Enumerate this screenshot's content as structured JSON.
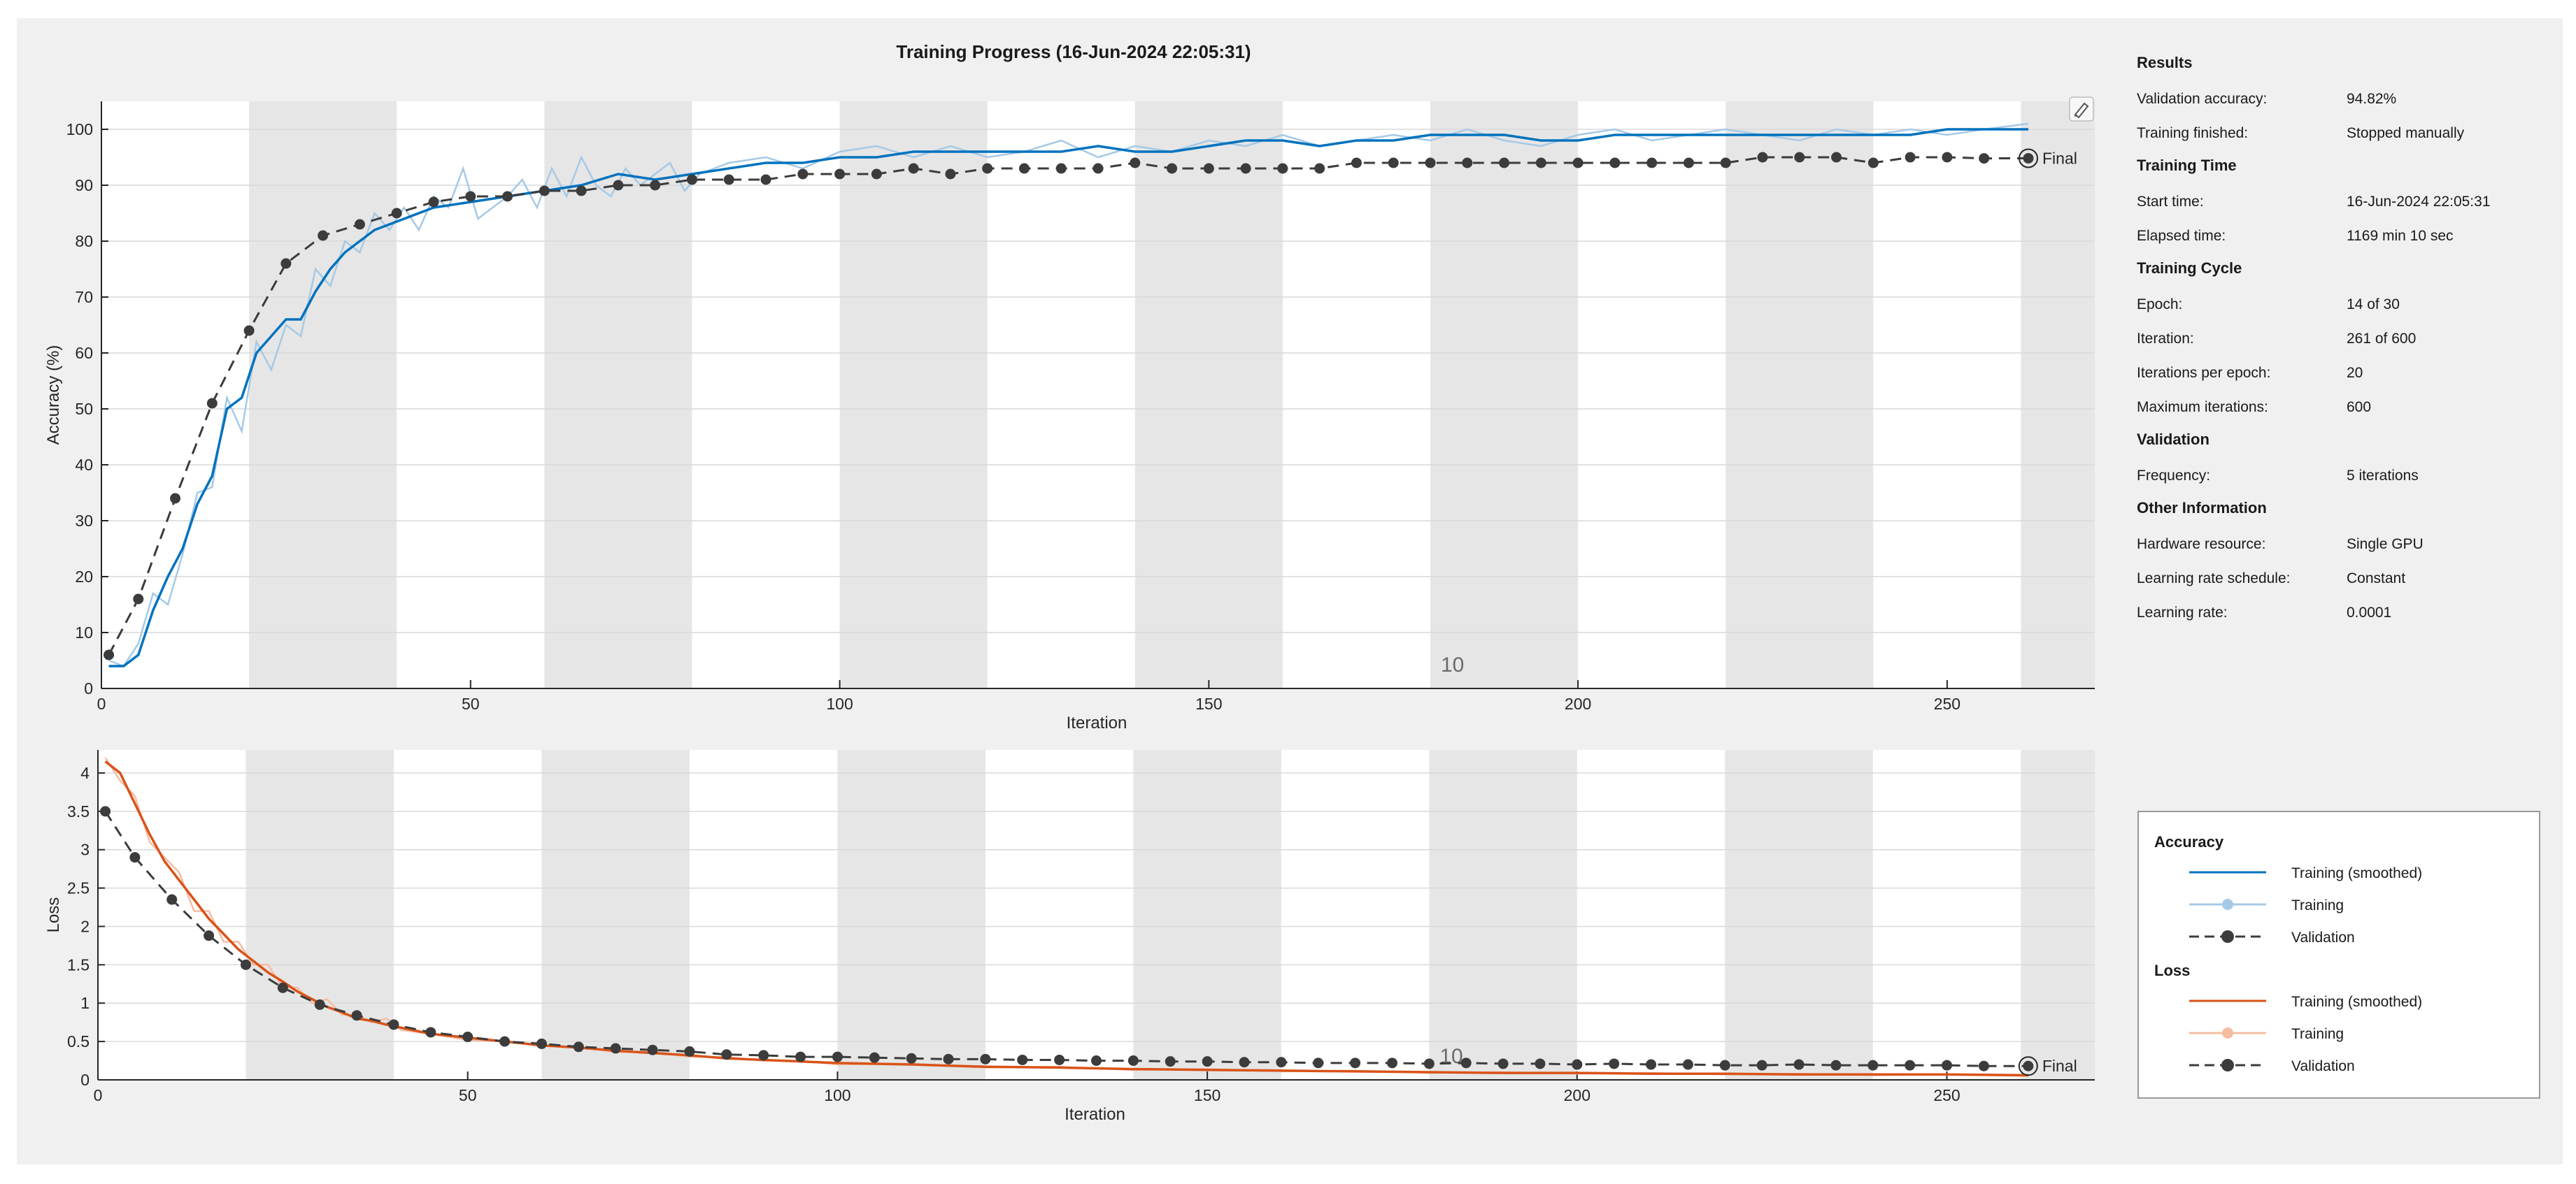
{
  "chart_data": [
    {
      "type": "line",
      "id": "accuracy",
      "title": "Training Progress (16-Jun-2024 22:05:31)",
      "xlabel": "Iteration",
      "ylabel": "Accuracy (%)",
      "xlim": [
        0,
        270
      ],
      "ylim": [
        0,
        105
      ],
      "xticks": [
        0,
        50,
        100,
        150,
        200,
        250
      ],
      "yticks": [
        0,
        10,
        20,
        30,
        40,
        50,
        60,
        70,
        80,
        90,
        100
      ],
      "grid": true,
      "epoch_bands": [
        [
          20,
          40
        ],
        [
          60,
          80
        ],
        [
          100,
          120
        ],
        [
          140,
          160
        ],
        [
          180,
          200
        ],
        [
          220,
          240
        ],
        [
          260,
          270
        ]
      ],
      "epoch_label": {
        "text": "10",
        "x": 183
      },
      "final_label": "Final",
      "series": [
        {
          "name": "Training (smoothed)",
          "color": "#0072bd",
          "x": [
            1,
            3,
            5,
            7,
            9,
            11,
            13,
            15,
            17,
            19,
            21,
            23,
            25,
            27,
            29,
            31,
            33,
            35,
            37,
            39,
            41,
            45,
            50,
            55,
            60,
            65,
            70,
            75,
            80,
            85,
            90,
            95,
            100,
            105,
            110,
            115,
            120,
            125,
            130,
            135,
            140,
            145,
            150,
            155,
            160,
            165,
            170,
            175,
            180,
            185,
            190,
            195,
            200,
            205,
            210,
            215,
            220,
            225,
            230,
            235,
            240,
            245,
            250,
            255,
            261
          ],
          "values": [
            4,
            4,
            6,
            14,
            20,
            25,
            33,
            38,
            50,
            52,
            60,
            63,
            66,
            66,
            71,
            75,
            78,
            80,
            82,
            83,
            84,
            86,
            87,
            88,
            89,
            90,
            92,
            91,
            92,
            93,
            94,
            94,
            95,
            95,
            96,
            96,
            96,
            96,
            96,
            97,
            96,
            96,
            97,
            98,
            98,
            97,
            98,
            98,
            99,
            99,
            99,
            98,
            98,
            99,
            99,
            99,
            99,
            99,
            99,
            99,
            99,
            99,
            100,
            100,
            100
          ]
        },
        {
          "name": "Training",
          "color": "#a6c9e6",
          "x": [
            1,
            3,
            5,
            7,
            9,
            11,
            13,
            15,
            17,
            19,
            21,
            23,
            25,
            27,
            29,
            31,
            33,
            35,
            37,
            39,
            41,
            43,
            45,
            47,
            49,
            51,
            53,
            55,
            57,
            59,
            61,
            63,
            65,
            67,
            69,
            71,
            73,
            75,
            77,
            79,
            81,
            85,
            90,
            95,
            100,
            105,
            110,
            115,
            120,
            125,
            130,
            135,
            140,
            145,
            150,
            155,
            160,
            165,
            170,
            175,
            180,
            185,
            190,
            195,
            200,
            205,
            210,
            215,
            220,
            225,
            230,
            235,
            240,
            245,
            250,
            255,
            261
          ],
          "values": [
            5,
            4,
            8,
            17,
            15,
            24,
            35,
            36,
            52,
            46,
            62,
            57,
            65,
            63,
            75,
            72,
            80,
            78,
            85,
            82,
            86,
            82,
            88,
            86,
            93,
            84,
            86,
            88,
            91,
            86,
            93,
            88,
            95,
            90,
            88,
            93,
            90,
            92,
            94,
            89,
            92,
            94,
            95,
            93,
            96,
            97,
            95,
            97,
            95,
            96,
            98,
            95,
            97,
            96,
            98,
            97,
            99,
            97,
            98,
            99,
            98,
            100,
            98,
            97,
            99,
            100,
            98,
            99,
            100,
            99,
            98,
            100,
            99,
            100,
            99,
            100,
            101
          ]
        },
        {
          "name": "Validation",
          "color": "#3c3c3c",
          "x": [
            1,
            5,
            10,
            15,
            20,
            25,
            30,
            35,
            40,
            45,
            50,
            55,
            60,
            65,
            70,
            75,
            80,
            85,
            90,
            95,
            100,
            105,
            110,
            115,
            120,
            125,
            130,
            135,
            140,
            145,
            150,
            155,
            160,
            165,
            170,
            175,
            180,
            185,
            190,
            195,
            200,
            205,
            210,
            215,
            220,
            225,
            230,
            235,
            240,
            245,
            250,
            255,
            261
          ],
          "values": [
            6,
            16,
            34,
            51,
            64,
            76,
            81,
            83,
            85,
            87,
            88,
            88,
            89,
            89,
            90,
            90,
            91,
            91,
            91,
            92,
            92,
            92,
            93,
            92,
            93,
            93,
            93,
            93,
            94,
            93,
            93,
            93,
            93,
            93,
            94,
            94,
            94,
            94,
            94,
            94,
            94,
            94,
            94,
            94,
            94,
            95,
            95,
            95,
            94,
            95,
            95,
            94.8,
            94.82
          ]
        }
      ]
    },
    {
      "type": "line",
      "id": "loss",
      "xlabel": "Iteration",
      "ylabel": "Loss",
      "xlim": [
        0,
        270
      ],
      "ylim": [
        0,
        4.3
      ],
      "xticks": [
        0,
        50,
        100,
        150,
        200,
        250
      ],
      "yticks": [
        0,
        0.5,
        1,
        1.5,
        2,
        2.5,
        3,
        3.5,
        4
      ],
      "ytick_labels": [
        "0",
        "0.5",
        "1",
        "1.5",
        "2",
        "2.5",
        "3",
        "3.5",
        "4"
      ],
      "grid": true,
      "epoch_bands": [
        [
          20,
          40
        ],
        [
          60,
          80
        ],
        [
          100,
          120
        ],
        [
          140,
          160
        ],
        [
          180,
          200
        ],
        [
          220,
          240
        ],
        [
          260,
          270
        ]
      ],
      "epoch_label": {
        "text": "10",
        "x": 183
      },
      "final_label": "Final",
      "series": [
        {
          "name": "Training (smoothed)",
          "color": "#d95319",
          "x": [
            1,
            3,
            5,
            7,
            9,
            11,
            13,
            15,
            17,
            19,
            21,
            23,
            25,
            27,
            29,
            31,
            33,
            35,
            37,
            39,
            41,
            45,
            50,
            55,
            60,
            65,
            70,
            75,
            80,
            85,
            90,
            95,
            100,
            110,
            120,
            130,
            140,
            150,
            160,
            170,
            180,
            190,
            200,
            210,
            220,
            230,
            240,
            250,
            261
          ],
          "values": [
            4.15,
            4.0,
            3.6,
            3.2,
            2.85,
            2.6,
            2.35,
            2.1,
            1.9,
            1.7,
            1.55,
            1.4,
            1.28,
            1.15,
            1.05,
            0.95,
            0.88,
            0.8,
            0.77,
            0.72,
            0.68,
            0.6,
            0.55,
            0.5,
            0.45,
            0.42,
            0.38,
            0.35,
            0.32,
            0.28,
            0.26,
            0.24,
            0.22,
            0.2,
            0.17,
            0.16,
            0.14,
            0.13,
            0.12,
            0.11,
            0.1,
            0.09,
            0.09,
            0.08,
            0.08,
            0.07,
            0.07,
            0.07,
            0.06
          ]
        },
        {
          "name": "Training",
          "color": "#f4bda2",
          "x": [
            1,
            3,
            5,
            7,
            9,
            11,
            13,
            15,
            17,
            19,
            21,
            23,
            25,
            27,
            29,
            31,
            33,
            35,
            37,
            39,
            41,
            45,
            50,
            55,
            60,
            65,
            70,
            75,
            80,
            85,
            90,
            95,
            100,
            110,
            120,
            130,
            140,
            150,
            160,
            170,
            180,
            190,
            200,
            210,
            220,
            230,
            240,
            250,
            261
          ],
          "values": [
            4.2,
            3.9,
            3.7,
            3.1,
            2.9,
            2.7,
            2.2,
            2.2,
            1.8,
            1.8,
            1.5,
            1.5,
            1.2,
            1.2,
            1.0,
            1.05,
            0.85,
            0.85,
            0.75,
            0.8,
            0.65,
            0.6,
            0.52,
            0.5,
            0.44,
            0.43,
            0.36,
            0.37,
            0.3,
            0.3,
            0.25,
            0.25,
            0.2,
            0.21,
            0.16,
            0.17,
            0.13,
            0.14,
            0.11,
            0.12,
            0.09,
            0.1,
            0.08,
            0.09,
            0.07,
            0.08,
            0.06,
            0.07,
            0.05
          ]
        },
        {
          "name": "Validation",
          "color": "#3c3c3c",
          "x": [
            1,
            5,
            10,
            15,
            20,
            25,
            30,
            35,
            40,
            45,
            50,
            55,
            60,
            65,
            70,
            75,
            80,
            85,
            90,
            95,
            100,
            105,
            110,
            115,
            120,
            125,
            130,
            135,
            140,
            145,
            150,
            155,
            160,
            165,
            170,
            175,
            180,
            185,
            190,
            195,
            200,
            205,
            210,
            215,
            220,
            225,
            230,
            235,
            240,
            245,
            250,
            255,
            261
          ],
          "values": [
            3.5,
            2.9,
            2.35,
            1.88,
            1.5,
            1.2,
            0.98,
            0.84,
            0.72,
            0.62,
            0.56,
            0.5,
            0.47,
            0.43,
            0.41,
            0.39,
            0.37,
            0.33,
            0.32,
            0.3,
            0.3,
            0.29,
            0.28,
            0.27,
            0.27,
            0.26,
            0.26,
            0.25,
            0.25,
            0.24,
            0.24,
            0.23,
            0.23,
            0.22,
            0.22,
            0.22,
            0.21,
            0.22,
            0.21,
            0.21,
            0.2,
            0.21,
            0.2,
            0.2,
            0.19,
            0.19,
            0.2,
            0.19,
            0.19,
            0.19,
            0.19,
            0.18,
            0.18
          ]
        }
      ]
    }
  ],
  "info": {
    "results_title": "Results",
    "validation_accuracy_label": "Validation accuracy:",
    "validation_accuracy_value": "94.82%",
    "training_finished_label": "Training finished:",
    "training_finished_value": "Stopped manually",
    "time_title": "Training Time",
    "start_time_label": "Start time:",
    "start_time_value": "16-Jun-2024 22:05:31",
    "elapsed_label": "Elapsed time:",
    "elapsed_value": "1169 min 10 sec",
    "cycle_title": "Training Cycle",
    "epoch_label": "Epoch:",
    "epoch_value": "14 of 30",
    "iteration_label": "Iteration:",
    "iteration_value": "261 of 600",
    "iter_per_epoch_label": "Iterations per epoch:",
    "iter_per_epoch_value": "20",
    "max_iter_label": "Maximum iterations:",
    "max_iter_value": "600",
    "validation_title": "Validation",
    "frequency_label": "Frequency:",
    "frequency_value": "5 iterations",
    "other_title": "Other Information",
    "hardware_label": "Hardware resource:",
    "hardware_value": "Single GPU",
    "lr_schedule_label": "Learning rate schedule:",
    "lr_schedule_value": "Constant",
    "lr_label": "Learning rate:",
    "lr_value": "0.0001"
  },
  "legend": {
    "accuracy_title": "Accuracy",
    "loss_title": "Loss",
    "acc_smoothed": "Training (smoothed)",
    "acc_training": "Training",
    "acc_validation": "Validation",
    "loss_smoothed": "Training (smoothed)",
    "loss_training": "Training",
    "loss_validation": "Validation",
    "colors": {
      "acc_smoothed": "#0072bd",
      "acc_training": "#a6c9e6",
      "loss_smoothed": "#d95319",
      "loss_training": "#f4bda2",
      "validation": "#3c3c3c"
    }
  }
}
